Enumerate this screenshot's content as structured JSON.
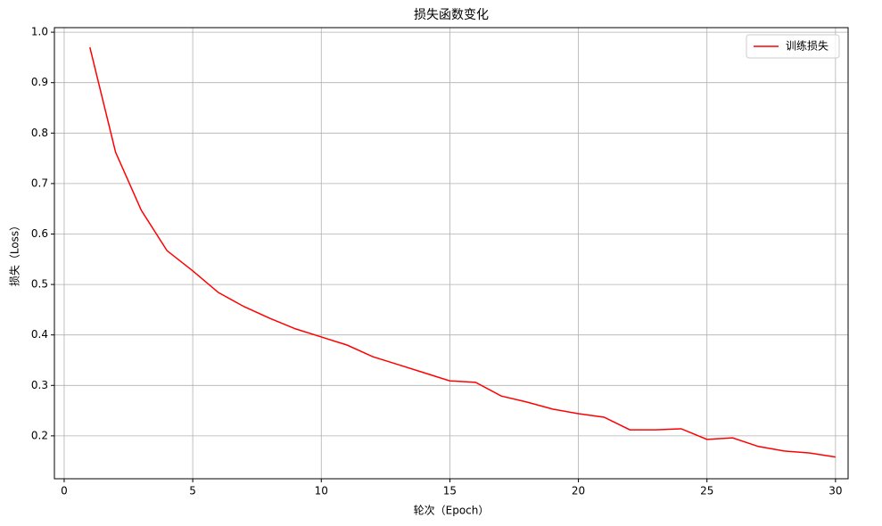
{
  "chart_data": {
    "type": "line",
    "title": "损失函数变化",
    "x_label": "轮次（Epoch）",
    "y_label": "损失（Loss）",
    "x": [
      1,
      2,
      3,
      4,
      5,
      6,
      7,
      8,
      9,
      10,
      11,
      12,
      13,
      14,
      15,
      16,
      17,
      18,
      19,
      20,
      21,
      22,
      23,
      24,
      25,
      26,
      27,
      28,
      29,
      30
    ],
    "series": [
      {
        "name": "训练损失",
        "color": "#ff0000",
        "values": [
          0.97,
          0.762,
          0.647,
          0.567,
          0.527,
          0.484,
          0.456,
          0.433,
          0.412,
          0.396,
          0.38,
          0.357,
          0.341,
          0.325,
          0.309,
          0.306,
          0.279,
          0.267,
          0.253,
          0.244,
          0.237,
          0.212,
          0.212,
          0.214,
          0.193,
          0.196,
          0.179,
          0.17,
          0.166,
          0.158
        ]
      }
    ],
    "xlim": [
      -0.38,
      30.49
    ],
    "ylim": [
      0.115,
      1.009
    ],
    "xticks": [
      0,
      5,
      10,
      15,
      20,
      25,
      30
    ],
    "yticks": [
      0.2,
      0.3,
      0.4,
      0.5,
      0.6,
      0.7,
      0.8,
      0.9,
      {
        "value": 1,
        "label": "1.0"
      }
    ],
    "grid": true,
    "legend": "upper right"
  }
}
